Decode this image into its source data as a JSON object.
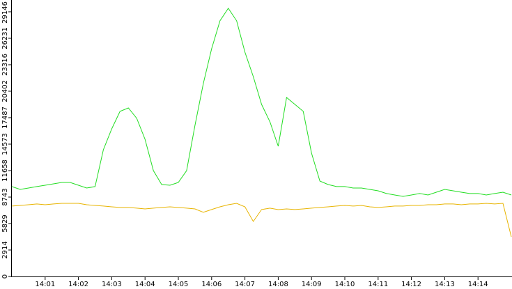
{
  "chart_data": {
    "type": "line",
    "x": [
      "14:00:00",
      "14:00:15",
      "14:00:30",
      "14:00:45",
      "14:01:00",
      "14:01:15",
      "14:01:30",
      "14:01:45",
      "14:02:00",
      "14:02:15",
      "14:02:30",
      "14:02:45",
      "14:03:00",
      "14:03:15",
      "14:03:30",
      "14:03:45",
      "14:04:00",
      "14:04:15",
      "14:04:30",
      "14:04:45",
      "14:05:00",
      "14:05:15",
      "14:05:30",
      "14:05:45",
      "14:06:00",
      "14:06:15",
      "14:06:30",
      "14:06:45",
      "14:07:00",
      "14:07:15",
      "14:07:30",
      "14:07:45",
      "14:08:00",
      "14:08:15",
      "14:08:30",
      "14:08:45",
      "14:09:00",
      "14:09:15",
      "14:09:30",
      "14:09:45",
      "14:10:00",
      "14:10:15",
      "14:10:30",
      "14:10:45",
      "14:11:00",
      "14:11:15",
      "14:11:30",
      "14:11:45",
      "14:12:00",
      "14:12:15",
      "14:12:30",
      "14:12:45",
      "14:13:00",
      "14:13:15",
      "14:13:30",
      "14:13:45",
      "14:14:00",
      "14:14:15",
      "14:14:30",
      "14:14:45",
      "14:15:00"
    ],
    "series": [
      {
        "color": "#22dd22",
        "values": [
          9900,
          9590,
          9740,
          9900,
          10050,
          10200,
          10350,
          10350,
          10050,
          9740,
          9900,
          13960,
          16260,
          18180,
          18560,
          17410,
          15110,
          11660,
          10120,
          10050,
          10350,
          11660,
          16640,
          21250,
          25080,
          28150,
          29530,
          28150,
          24700,
          22010,
          18950,
          17030,
          14340,
          19710,
          18950,
          18180,
          13580,
          10510,
          10120,
          9900,
          9900,
          9740,
          9740,
          9590,
          9430,
          9130,
          8970,
          8820,
          8970,
          9130,
          8970,
          9280,
          9590,
          9430,
          9280,
          9130,
          9130,
          8970,
          9130,
          9280,
          8970
        ]
      },
      {
        "color": "#e8b400",
        "values": [
          7750,
          7820,
          7900,
          7980,
          7900,
          7980,
          8050,
          8050,
          8050,
          7900,
          7820,
          7750,
          7670,
          7600,
          7600,
          7520,
          7440,
          7520,
          7600,
          7670,
          7600,
          7520,
          7440,
          7060,
          7370,
          7670,
          7900,
          8050,
          7670,
          6060,
          7370,
          7520,
          7360,
          7440,
          7370,
          7440,
          7520,
          7600,
          7670,
          7750,
          7820,
          7750,
          7820,
          7670,
          7600,
          7670,
          7750,
          7750,
          7820,
          7820,
          7900,
          7900,
          7980,
          7980,
          7900,
          7980,
          7980,
          8050,
          7980,
          8050,
          4370
        ]
      }
    ],
    "xlim": [
      "14:00:00",
      "14:15:00"
    ],
    "xticks": [
      "14:01",
      "14:02",
      "14:03",
      "14:04",
      "14:05",
      "14:06",
      "14:07",
      "14:08",
      "14:09",
      "14:10",
      "14:11",
      "14:12",
      "14:13",
      "14:14"
    ],
    "ylim": [
      0,
      30446
    ],
    "yticks": [
      0,
      2914,
      5829,
      8743,
      11658,
      14573,
      17487,
      20402,
      23316,
      26231,
      29146
    ]
  }
}
